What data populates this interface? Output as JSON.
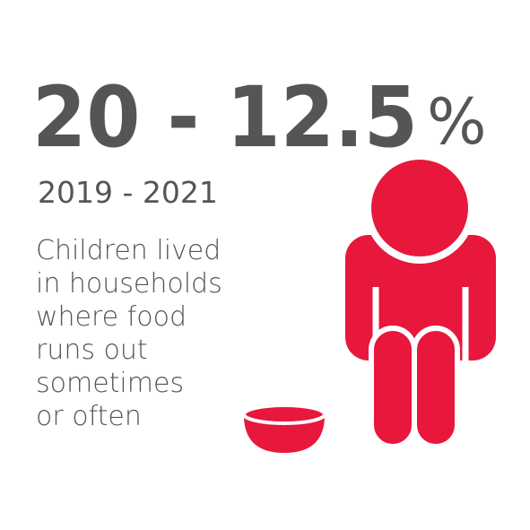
{
  "headline": {
    "figure": "20 - 12.5",
    "unit": "%"
  },
  "period": "2019 - 2021",
  "description_lines": [
    "Children lived",
    "in households",
    "where food",
    "runs out",
    "sometimes",
    "or often"
  ]
}
